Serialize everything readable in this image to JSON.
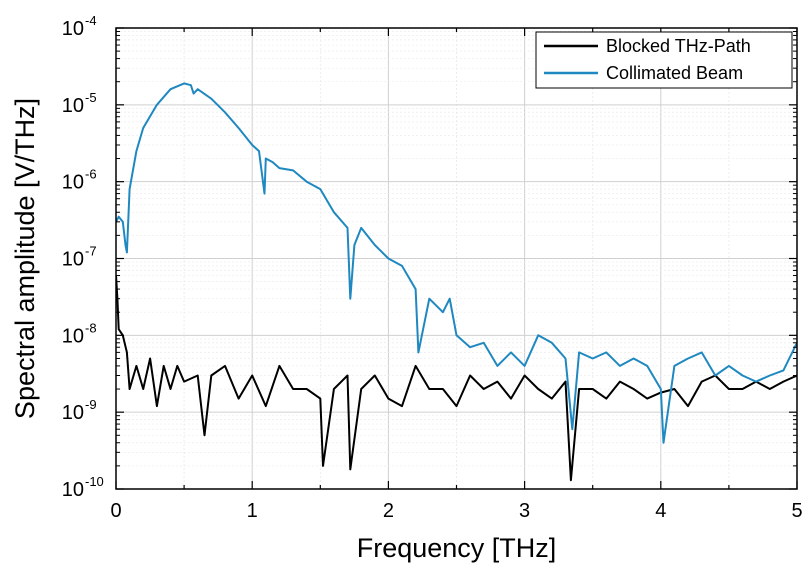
{
  "chart_data": {
    "type": "line",
    "xlabel": "Frequency [THz]",
    "ylabel": "Spectral amplitude [V/THz]",
    "x_scale": "linear",
    "y_scale": "log",
    "xlim": [
      0,
      5
    ],
    "ylim": [
      1e-10,
      0.0001
    ],
    "x_ticks": [
      "0",
      "1",
      "2",
      "3",
      "4",
      "5"
    ],
    "y_ticks": [
      {
        "base": "10",
        "exp": "-10"
      },
      {
        "base": "10",
        "exp": "-9"
      },
      {
        "base": "10",
        "exp": "-8"
      },
      {
        "base": "10",
        "exp": "-7"
      },
      {
        "base": "10",
        "exp": "-6"
      },
      {
        "base": "10",
        "exp": "-5"
      },
      {
        "base": "10",
        "exp": "-4"
      }
    ],
    "grid": true,
    "legend_position": "top-right",
    "series": [
      {
        "name": "Blocked THz-Path",
        "color": "#000000",
        "x": [
          0.0,
          0.01,
          0.02,
          0.05,
          0.08,
          0.1,
          0.15,
          0.2,
          0.25,
          0.3,
          0.35,
          0.4,
          0.45,
          0.5,
          0.6,
          0.65,
          0.7,
          0.8,
          0.9,
          1.0,
          1.1,
          1.2,
          1.3,
          1.4,
          1.5,
          1.52,
          1.6,
          1.7,
          1.72,
          1.8,
          1.9,
          2.0,
          2.1,
          2.2,
          2.3,
          2.4,
          2.5,
          2.6,
          2.7,
          2.8,
          2.9,
          3.0,
          3.1,
          3.2,
          3.3,
          3.34,
          3.4,
          3.5,
          3.6,
          3.7,
          3.8,
          3.9,
          4.0,
          4.1,
          4.2,
          4.3,
          4.4,
          4.5,
          4.6,
          4.7,
          4.8,
          4.9,
          5.0
        ],
        "y": [
          6e-08,
          3e-08,
          1.2e-08,
          1e-08,
          6e-09,
          2e-09,
          4e-09,
          2e-09,
          5e-09,
          1.2e-09,
          4e-09,
          2e-09,
          4e-09,
          2.5e-09,
          3e-09,
          5e-10,
          3e-09,
          4e-09,
          1.5e-09,
          3e-09,
          1.2e-09,
          4e-09,
          2e-09,
          2e-09,
          1.5e-09,
          2e-10,
          2e-09,
          3e-09,
          1.8e-10,
          2e-09,
          3e-09,
          1.5e-09,
          1.2e-09,
          4e-09,
          2e-09,
          2e-09,
          1.2e-09,
          3e-09,
          2e-09,
          2.5e-09,
          1.5e-09,
          3e-09,
          2e-09,
          1.5e-09,
          2.5e-09,
          1.3e-10,
          2e-09,
          2e-09,
          1.5e-09,
          2.5e-09,
          2e-09,
          1.5e-09,
          1.8e-09,
          2e-09,
          1.2e-09,
          2.5e-09,
          3e-09,
          2e-09,
          2e-09,
          2.5e-09,
          2e-09,
          2.5e-09,
          3e-09
        ]
      },
      {
        "name": "Collimated Beam",
        "color": "#1f88c0",
        "x": [
          0.0,
          0.02,
          0.05,
          0.07,
          0.08,
          0.1,
          0.15,
          0.2,
          0.3,
          0.4,
          0.5,
          0.55,
          0.57,
          0.6,
          0.7,
          0.8,
          0.9,
          1.0,
          1.05,
          1.09,
          1.1,
          1.15,
          1.2,
          1.3,
          1.4,
          1.5,
          1.6,
          1.7,
          1.72,
          1.75,
          1.8,
          1.9,
          2.0,
          2.1,
          2.2,
          2.22,
          2.3,
          2.4,
          2.45,
          2.5,
          2.6,
          2.7,
          2.8,
          2.9,
          3.0,
          3.1,
          3.2,
          3.3,
          3.35,
          3.4,
          3.5,
          3.6,
          3.7,
          3.8,
          3.9,
          4.0,
          4.02,
          4.1,
          4.2,
          4.3,
          4.4,
          4.5,
          4.6,
          4.7,
          4.8,
          4.9,
          5.0
        ],
        "y": [
          3e-07,
          3.5e-07,
          3e-07,
          1.5e-07,
          1.2e-07,
          8e-07,
          2.5e-06,
          5e-06,
          1e-05,
          1.6e-05,
          1.9e-05,
          1.8e-05,
          1.4e-05,
          1.6e-05,
          1.2e-05,
          8e-06,
          5e-06,
          3e-06,
          2.5e-06,
          7e-07,
          2e-06,
          1.8e-06,
          1.5e-06,
          1.4e-06,
          1e-06,
          8e-07,
          4e-07,
          2.5e-07,
          3e-08,
          1.5e-07,
          2.5e-07,
          1.5e-07,
          1e-07,
          8e-08,
          4e-08,
          6e-09,
          3e-08,
          2e-08,
          3e-08,
          1e-08,
          7e-09,
          8e-09,
          4e-09,
          6e-09,
          4e-09,
          1e-08,
          8e-09,
          5e-09,
          6e-10,
          6e-09,
          5e-09,
          6e-09,
          4e-09,
          5e-09,
          4e-09,
          2e-09,
          4e-10,
          4e-09,
          5e-09,
          6e-09,
          3e-09,
          4e-09,
          3e-09,
          2.5e-09,
          3e-09,
          3.5e-09,
          8e-09
        ]
      }
    ]
  }
}
